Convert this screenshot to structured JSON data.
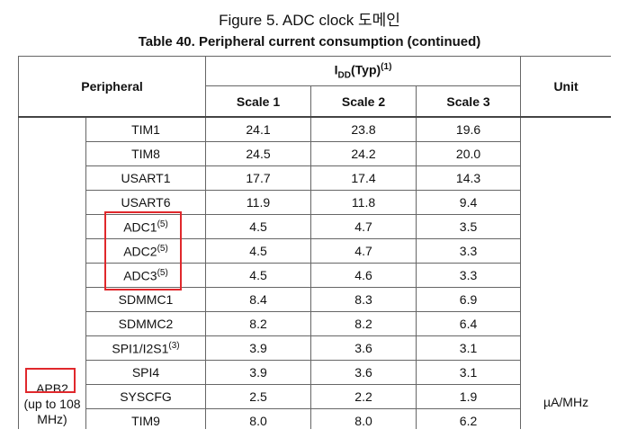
{
  "caption": "Figure 5. ADC clock 도메인",
  "table_title": "Table 40. Peripheral current consumption (continued)",
  "header": {
    "peripheral": "Peripheral",
    "idd_main": "I",
    "idd_sub": "DD",
    "idd_rest": "(Typ)",
    "idd_sup": "(1)",
    "scales": [
      "Scale 1",
      "Scale 2",
      "Scale 3"
    ],
    "unit": "Unit"
  },
  "group": {
    "name": "APB2",
    "note": "(up to 108 MHz)"
  },
  "unit_value": "µA/MHz",
  "rows": [
    {
      "name": "TIM1",
      "values": [
        "24.1",
        "23.8",
        "19.6"
      ]
    },
    {
      "name": "TIM8",
      "values": [
        "24.5",
        "24.2",
        "20.0"
      ]
    },
    {
      "name": "USART1",
      "values": [
        "17.7",
        "17.4",
        "14.3"
      ]
    },
    {
      "name": "USART6",
      "values": [
        "11.9",
        "11.8",
        "9.4"
      ]
    },
    {
      "name": "ADC1",
      "sup": "(5)",
      "values": [
        "4.5",
        "4.7",
        "3.5"
      ]
    },
    {
      "name": "ADC2",
      "sup": "(5)",
      "values": [
        "4.5",
        "4.7",
        "3.3"
      ]
    },
    {
      "name": "ADC3",
      "sup": "(5)",
      "values": [
        "4.5",
        "4.6",
        "3.3"
      ]
    },
    {
      "name": "SDMMC1",
      "values": [
        "8.4",
        "8.3",
        "6.9"
      ]
    },
    {
      "name": "SDMMC2",
      "values": [
        "8.2",
        "8.2",
        "6.4"
      ]
    },
    {
      "name": "SPI1/I2S1",
      "sup": "(3)",
      "values": [
        "3.9",
        "3.6",
        "3.1"
      ]
    },
    {
      "name": "SPI4",
      "values": [
        "3.9",
        "3.6",
        "3.1"
      ]
    },
    {
      "name": "SYSCFG",
      "values": [
        "2.5",
        "2.2",
        "1.9"
      ]
    },
    {
      "name": "TIM9",
      "values": [
        "8.0",
        "8.0",
        "6.2"
      ]
    }
  ]
}
